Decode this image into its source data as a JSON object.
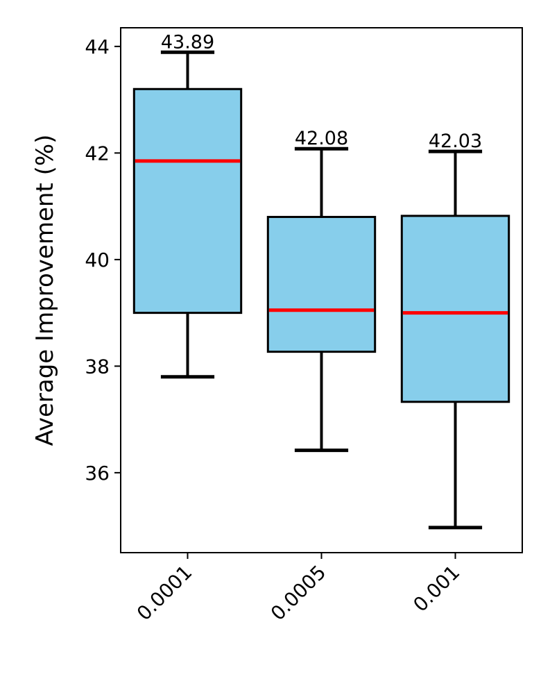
{
  "chart_data": {
    "type": "box",
    "title": "",
    "xlabel": "",
    "ylabel": "Average Improvement (%)",
    "categories": [
      "0.0001",
      "0.0005",
      "0.001"
    ],
    "ylim": [
      34.5,
      44.35
    ],
    "yticks": [
      36,
      38,
      40,
      42,
      44
    ],
    "ytick_labels": [
      "36",
      "38",
      "40",
      "42",
      "44"
    ],
    "grid": false,
    "box_color": "#87CEEB",
    "median_color": "#FF0000",
    "edge_color": "#000000",
    "boxes": [
      {
        "category": "0.0001",
        "whisker_low": 37.8,
        "q1": 39.0,
        "median": 41.85,
        "q3": 43.2,
        "whisker_high": 43.89,
        "max_label": "43.89"
      },
      {
        "category": "0.0005",
        "whisker_low": 36.42,
        "q1": 38.27,
        "median": 39.05,
        "q3": 40.8,
        "whisker_high": 42.08,
        "max_label": "42.08"
      },
      {
        "category": "0.001",
        "whisker_low": 34.97,
        "q1": 37.33,
        "median": 39.0,
        "q3": 40.82,
        "whisker_high": 42.03,
        "max_label": "42.03"
      }
    ]
  }
}
